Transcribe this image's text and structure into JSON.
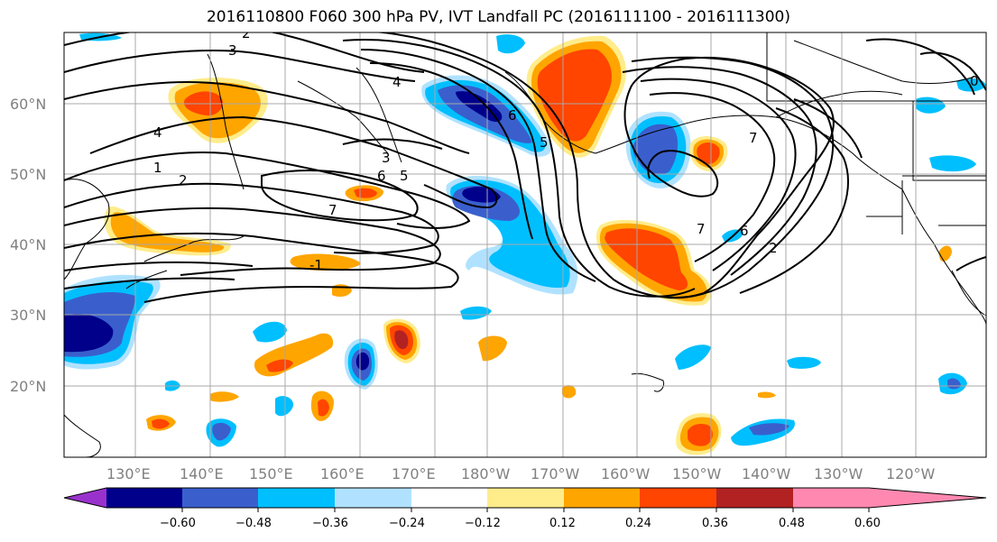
{
  "title": "2016110800 F060 300 hPa PV, IVT Landfall PC (2016111100 - 2016111300)",
  "map": {
    "lat_labels": [
      "60°N",
      "50°N",
      "40°N",
      "30°N",
      "20°N"
    ],
    "lon_labels": [
      "130°E",
      "140°E",
      "150°E",
      "160°E",
      "170°E",
      "180°W",
      "170°W",
      "160°W",
      "150°W",
      "140°W",
      "130°W",
      "120°W"
    ],
    "contour_labels": [
      "3",
      "2",
      "4",
      "4",
      "1",
      "2",
      "3",
      "6",
      "5",
      "7",
      "-1",
      "6",
      "5",
      "7",
      "6",
      "7",
      "2",
      "0"
    ]
  },
  "colorbar": {
    "colors": [
      "#9932cc",
      "#00008b",
      "#3a5fcd",
      "#00bfff",
      "#b0e2ff",
      "#ffffff",
      "#ffec8b",
      "#ffa500",
      "#ff4500",
      "#b22222",
      "#ff88b0"
    ],
    "tick_labels": [
      "−0.60",
      "−0.48",
      "−0.36",
      "−0.24",
      "−0.12",
      "0.12",
      "0.24",
      "0.36",
      "0.48",
      "0.60"
    ]
  },
  "colors": {
    "strong_neg": "#00008b",
    "mid_neg": "#3a5fcd",
    "neg": "#00bfff",
    "weak_neg": "#b0e2ff",
    "weak_pos": "#ffec8b",
    "pos": "#ffa500",
    "mid_pos": "#ff4500",
    "strong_pos": "#b22222"
  }
}
